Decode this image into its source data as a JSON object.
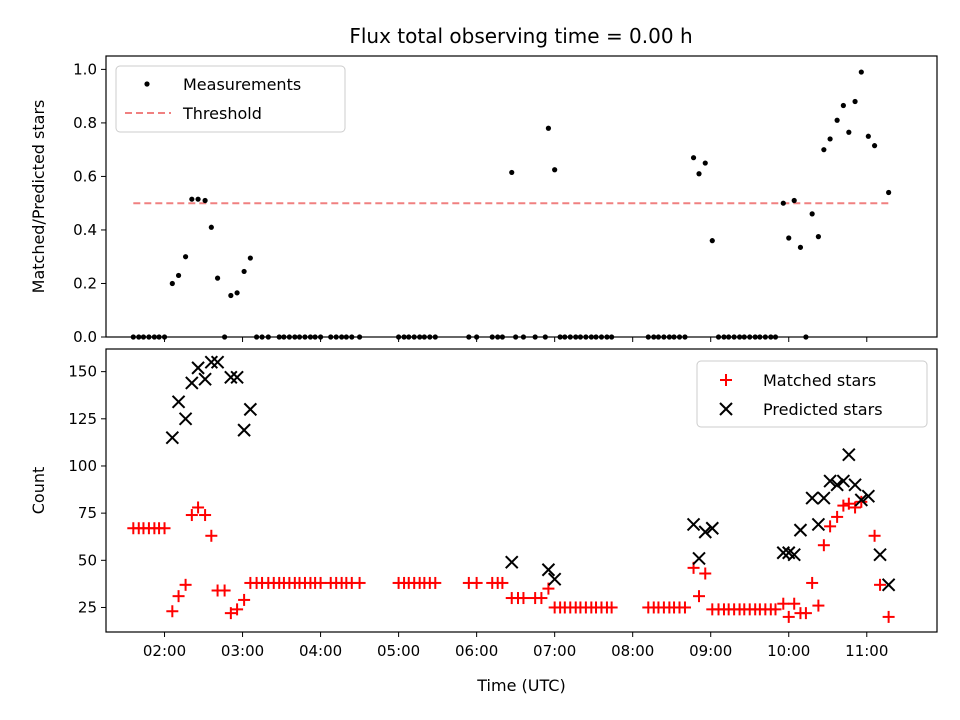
{
  "title": "Flux total observing time = 0.00 h",
  "colors": {
    "measurement": "#000000",
    "threshold": "#f08080",
    "matched": "#ff0000",
    "predicted": "#000000"
  },
  "chart_data": [
    {
      "type": "scatter",
      "ylabel": "Matched/Predicted stars",
      "xlim": [
        1.25,
        11.9
      ],
      "ylim": [
        0,
        1.05
      ],
      "yticks": [
        0.0,
        0.2,
        0.4,
        0.6,
        0.8,
        1.0
      ],
      "ytick_labels": [
        "0.0",
        "0.2",
        "0.4",
        "0.6",
        "0.8",
        "1.0"
      ],
      "xticks": [
        2,
        3,
        4,
        5,
        6,
        7,
        8,
        9,
        10,
        11
      ],
      "legend": {
        "placement": "upper-left",
        "entries": [
          "Measurements",
          "Threshold"
        ]
      },
      "threshold": {
        "name": "Threshold",
        "value": 0.5,
        "x_range": [
          1.6,
          11.3
        ]
      },
      "series": [
        {
          "name": "Measurements",
          "marker": "dot",
          "points": [
            [
              1.6,
              0
            ],
            [
              1.67,
              0
            ],
            [
              1.73,
              0
            ],
            [
              1.8,
              0
            ],
            [
              1.87,
              0
            ],
            [
              1.93,
              0
            ],
            [
              2.0,
              0
            ],
            [
              2.1,
              0.2
            ],
            [
              2.18,
              0.23
            ],
            [
              2.27,
              0.3
            ],
            [
              2.35,
              0.515
            ],
            [
              2.43,
              0.515
            ],
            [
              2.52,
              0.51
            ],
            [
              2.6,
              0.41
            ],
            [
              2.68,
              0.22
            ],
            [
              2.77,
              0
            ],
            [
              2.85,
              0.155
            ],
            [
              2.93,
              0.165
            ],
            [
              3.02,
              0.245
            ],
            [
              3.1,
              0.295
            ],
            [
              3.18,
              0
            ],
            [
              3.25,
              0
            ],
            [
              3.33,
              0
            ],
            [
              3.47,
              0
            ],
            [
              3.53,
              0
            ],
            [
              3.6,
              0
            ],
            [
              3.67,
              0
            ],
            [
              3.73,
              0
            ],
            [
              3.8,
              0
            ],
            [
              3.87,
              0
            ],
            [
              3.93,
              0
            ],
            [
              4.0,
              0
            ],
            [
              4.13,
              0
            ],
            [
              4.2,
              0
            ],
            [
              4.27,
              0
            ],
            [
              4.33,
              0
            ],
            [
              4.4,
              0
            ],
            [
              4.5,
              0
            ],
            [
              5.0,
              0
            ],
            [
              5.07,
              0
            ],
            [
              5.13,
              0
            ],
            [
              5.2,
              0
            ],
            [
              5.27,
              0
            ],
            [
              5.33,
              0
            ],
            [
              5.4,
              0
            ],
            [
              5.47,
              0
            ],
            [
              5.9,
              0
            ],
            [
              6.0,
              0
            ],
            [
              6.2,
              0
            ],
            [
              6.27,
              0
            ],
            [
              6.33,
              0
            ],
            [
              6.45,
              0.615
            ],
            [
              6.5,
              0
            ],
            [
              6.6,
              0
            ],
            [
              6.75,
              0
            ],
            [
              6.88,
              0
            ],
            [
              6.92,
              0.78
            ],
            [
              7.0,
              0.625
            ],
            [
              7.07,
              0
            ],
            [
              7.13,
              0
            ],
            [
              7.2,
              0
            ],
            [
              7.27,
              0
            ],
            [
              7.33,
              0
            ],
            [
              7.4,
              0
            ],
            [
              7.47,
              0
            ],
            [
              7.53,
              0
            ],
            [
              7.6,
              0
            ],
            [
              7.67,
              0
            ],
            [
              7.73,
              0
            ],
            [
              8.2,
              0
            ],
            [
              8.27,
              0
            ],
            [
              8.33,
              0
            ],
            [
              8.4,
              0
            ],
            [
              8.47,
              0
            ],
            [
              8.53,
              0
            ],
            [
              8.6,
              0
            ],
            [
              8.67,
              0
            ],
            [
              8.78,
              0.67
            ],
            [
              8.85,
              0.61
            ],
            [
              8.93,
              0.65
            ],
            [
              9.02,
              0.36
            ],
            [
              9.1,
              0
            ],
            [
              9.17,
              0
            ],
            [
              9.23,
              0
            ],
            [
              9.3,
              0
            ],
            [
              9.37,
              0
            ],
            [
              9.43,
              0
            ],
            [
              9.5,
              0
            ],
            [
              9.57,
              0
            ],
            [
              9.63,
              0
            ],
            [
              9.7,
              0
            ],
            [
              9.77,
              0
            ],
            [
              9.83,
              0
            ],
            [
              9.93,
              0.5
            ],
            [
              10.0,
              0.37
            ],
            [
              10.07,
              0.51
            ],
            [
              10.15,
              0.335
            ],
            [
              10.22,
              0
            ],
            [
              10.3,
              0.46
            ],
            [
              10.38,
              0.375
            ],
            [
              10.45,
              0.7
            ],
            [
              10.53,
              0.74
            ],
            [
              10.62,
              0.81
            ],
            [
              10.7,
              0.865
            ],
            [
              10.77,
              0.765
            ],
            [
              10.85,
              0.88
            ],
            [
              10.93,
              0.99
            ],
            [
              11.02,
              0.75
            ],
            [
              11.1,
              0.715
            ],
            [
              11.28,
              0.54
            ]
          ]
        }
      ]
    },
    {
      "type": "scatter",
      "xlabel": "Time (UTC)",
      "ylabel": "Count",
      "xlim": [
        1.25,
        11.9
      ],
      "ylim": [
        12,
        162
      ],
      "yticks": [
        25,
        50,
        75,
        100,
        125,
        150
      ],
      "ytick_labels": [
        "25",
        "50",
        "75",
        "100",
        "125",
        "150"
      ],
      "xticks": [
        2,
        3,
        4,
        5,
        6,
        7,
        8,
        9,
        10,
        11
      ],
      "xtick_labels": [
        "02:00",
        "03:00",
        "04:00",
        "05:00",
        "06:00",
        "07:00",
        "08:00",
        "09:00",
        "10:00",
        "11:00"
      ],
      "legend": {
        "placement": "upper-right",
        "entries": [
          "Matched stars",
          "Predicted stars"
        ]
      },
      "series": [
        {
          "name": "Matched stars",
          "marker": "plus",
          "points": [
            [
              1.6,
              67
            ],
            [
              1.67,
              67
            ],
            [
              1.73,
              67
            ],
            [
              1.8,
              67
            ],
            [
              1.87,
              67
            ],
            [
              1.93,
              67
            ],
            [
              2.0,
              67
            ],
            [
              2.1,
              23
            ],
            [
              2.18,
              31
            ],
            [
              2.27,
              37
            ],
            [
              2.35,
              74
            ],
            [
              2.43,
              78
            ],
            [
              2.52,
              74
            ],
            [
              2.6,
              63
            ],
            [
              2.68,
              34
            ],
            [
              2.77,
              34
            ],
            [
              2.85,
              22
            ],
            [
              2.93,
              24
            ],
            [
              3.02,
              29
            ],
            [
              3.1,
              38
            ],
            [
              3.18,
              38
            ],
            [
              3.25,
              38
            ],
            [
              3.33,
              38
            ],
            [
              3.4,
              38
            ],
            [
              3.47,
              38
            ],
            [
              3.53,
              38
            ],
            [
              3.6,
              38
            ],
            [
              3.67,
              38
            ],
            [
              3.73,
              38
            ],
            [
              3.8,
              38
            ],
            [
              3.87,
              38
            ],
            [
              3.93,
              38
            ],
            [
              4.0,
              38
            ],
            [
              4.13,
              38
            ],
            [
              4.2,
              38
            ],
            [
              4.27,
              38
            ],
            [
              4.33,
              38
            ],
            [
              4.4,
              38
            ],
            [
              4.5,
              38
            ],
            [
              5.0,
              38
            ],
            [
              5.07,
              38
            ],
            [
              5.13,
              38
            ],
            [
              5.2,
              38
            ],
            [
              5.27,
              38
            ],
            [
              5.33,
              38
            ],
            [
              5.4,
              38
            ],
            [
              5.47,
              38
            ],
            [
              5.9,
              38
            ],
            [
              6.0,
              38
            ],
            [
              6.2,
              38
            ],
            [
              6.27,
              38
            ],
            [
              6.33,
              38
            ],
            [
              6.45,
              30
            ],
            [
              6.53,
              30
            ],
            [
              6.6,
              30
            ],
            [
              6.75,
              30
            ],
            [
              6.83,
              30
            ],
            [
              6.92,
              35
            ],
            [
              7.0,
              25
            ],
            [
              7.07,
              25
            ],
            [
              7.13,
              25
            ],
            [
              7.2,
              25
            ],
            [
              7.27,
              25
            ],
            [
              7.33,
              25
            ],
            [
              7.4,
              25
            ],
            [
              7.47,
              25
            ],
            [
              7.53,
              25
            ],
            [
              7.6,
              25
            ],
            [
              7.67,
              25
            ],
            [
              7.73,
              25
            ],
            [
              8.2,
              25
            ],
            [
              8.27,
              25
            ],
            [
              8.33,
              25
            ],
            [
              8.4,
              25
            ],
            [
              8.47,
              25
            ],
            [
              8.53,
              25
            ],
            [
              8.6,
              25
            ],
            [
              8.67,
              25
            ],
            [
              8.78,
              46
            ],
            [
              8.85,
              31
            ],
            [
              8.93,
              43
            ],
            [
              9.02,
              24
            ],
            [
              9.1,
              24
            ],
            [
              9.17,
              24
            ],
            [
              9.23,
              24
            ],
            [
              9.3,
              24
            ],
            [
              9.37,
              24
            ],
            [
              9.43,
              24
            ],
            [
              9.5,
              24
            ],
            [
              9.57,
              24
            ],
            [
              9.63,
              24
            ],
            [
              9.7,
              24
            ],
            [
              9.77,
              24
            ],
            [
              9.83,
              24
            ],
            [
              9.93,
              27
            ],
            [
              10.0,
              20
            ],
            [
              10.07,
              27
            ],
            [
              10.15,
              22
            ],
            [
              10.22,
              22
            ],
            [
              10.3,
              38
            ],
            [
              10.38,
              26
            ],
            [
              10.45,
              58
            ],
            [
              10.53,
              68
            ],
            [
              10.62,
              73
            ],
            [
              10.7,
              79
            ],
            [
              10.77,
              80
            ],
            [
              10.85,
              78
            ],
            [
              10.93,
              81
            ],
            [
              11.1,
              63
            ],
            [
              11.17,
              37
            ],
            [
              11.28,
              20
            ]
          ]
        },
        {
          "name": "Predicted stars",
          "marker": "x",
          "points": [
            [
              2.1,
              115
            ],
            [
              2.18,
              134
            ],
            [
              2.27,
              125
            ],
            [
              2.35,
              144
            ],
            [
              2.43,
              152
            ],
            [
              2.52,
              146
            ],
            [
              2.6,
              155
            ],
            [
              2.68,
              155
            ],
            [
              2.85,
              147
            ],
            [
              2.93,
              147
            ],
            [
              3.02,
              119
            ],
            [
              3.1,
              130
            ],
            [
              6.45,
              49
            ],
            [
              6.92,
              45
            ],
            [
              7.0,
              40
            ],
            [
              8.78,
              69
            ],
            [
              8.85,
              51
            ],
            [
              8.93,
              65
            ],
            [
              9.02,
              67
            ],
            [
              9.93,
              54
            ],
            [
              10.0,
              54
            ],
            [
              10.07,
              53
            ],
            [
              10.15,
              66
            ],
            [
              10.3,
              83
            ],
            [
              10.38,
              69
            ],
            [
              10.45,
              83
            ],
            [
              10.53,
              92
            ],
            [
              10.62,
              90
            ],
            [
              10.7,
              92
            ],
            [
              10.77,
              106
            ],
            [
              10.85,
              90
            ],
            [
              10.93,
              82
            ],
            [
              11.02,
              84
            ],
            [
              11.17,
              53
            ],
            [
              11.28,
              37
            ]
          ]
        }
      ]
    }
  ]
}
